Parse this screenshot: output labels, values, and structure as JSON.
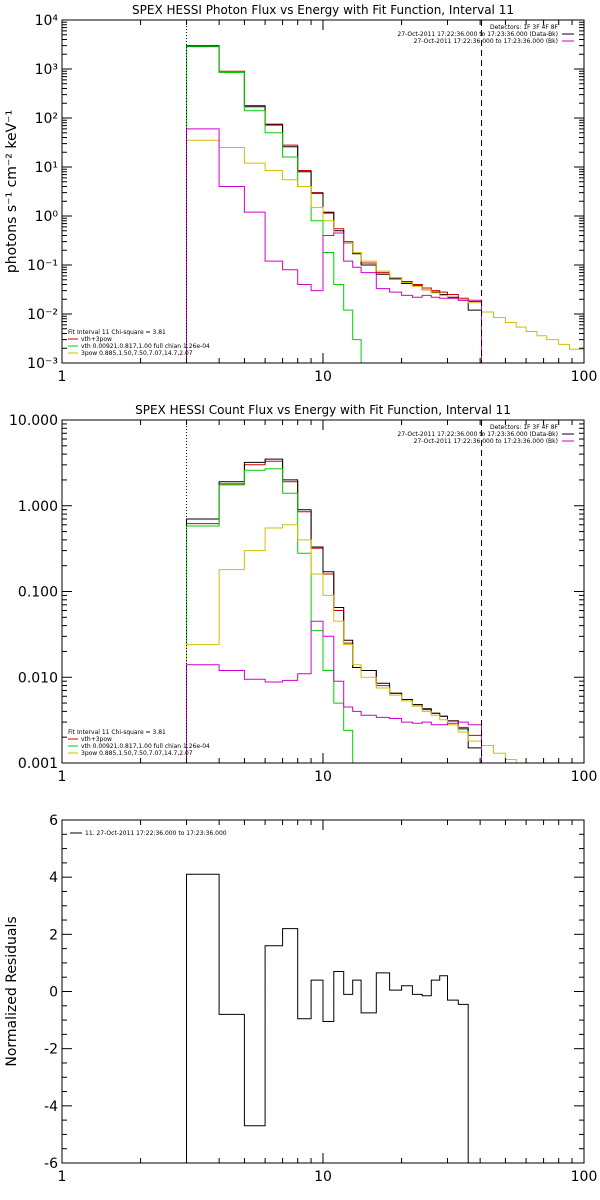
{
  "chart_data": [
    {
      "type": "line",
      "title": "SPEX HESSI Photon Flux vs Energy with Fit Function, Interval 11",
      "ylabel": "photons s⁻¹ cm⁻² keV⁻¹",
      "xlabel": "",
      "xscale": "log",
      "yscale": "log",
      "xlim": [
        1,
        100
      ],
      "ylim": [
        0.001,
        10000
      ],
      "grid": false,
      "xticks": [
        {
          "v": 1,
          "label": "1"
        },
        {
          "v": 10,
          "label": "10"
        },
        {
          "v": 100,
          "label": "100"
        }
      ],
      "yticks": [
        {
          "v": 0.001,
          "label": "10⁻³"
        },
        {
          "v": 0.01,
          "label": "10⁻²"
        },
        {
          "v": 0.1,
          "label": "10⁻¹"
        },
        {
          "v": 1,
          "label": "10⁰"
        },
        {
          "v": 10,
          "label": "10¹"
        },
        {
          "v": 100,
          "label": "10²"
        },
        {
          "v": 1000,
          "label": "10³"
        },
        {
          "v": 10000,
          "label": "10⁴"
        }
      ],
      "vlines": [
        {
          "x": 3.0,
          "style": "dotted",
          "color": "#000000"
        },
        {
          "x": 40.5,
          "style": "dashed",
          "color": "#000000"
        }
      ],
      "legend_topright": [
        {
          "text": "Detectors: 1F 3F 4F 8F",
          "color": ""
        },
        {
          "text": "27-Oct-2011 17:22:36.000 to 17:23:36.000 (Data-Bk)",
          "color": "#000000"
        },
        {
          "text": "27-Oct-2011 17:22:36.000 to 17:23:36.000 (Bk)",
          "color": "#d000d0"
        }
      ],
      "legend_bottomleft": [
        {
          "text": "Fit Interval 11   Chi-square = 3.81",
          "color": ""
        },
        {
          "text": "vth+3pow",
          "color": "#d00000"
        },
        {
          "text": "vth 0.00921,0.817,1.00   full chian 1.26e-04",
          "color": "#00d000"
        },
        {
          "text": "3pow 0.885,1.50,7.50,7.07,14.7,2.07",
          "color": "#d0c000"
        }
      ],
      "edges": [
        3.0,
        4.0,
        5.0,
        6.0,
        7.0,
        8.0,
        9.0,
        10.0,
        11.0,
        12.0,
        13.0,
        14.0,
        16.0,
        18.0,
        20.0,
        22.0,
        24.0,
        26.0,
        28.0,
        30.0,
        33.0,
        36.0,
        40.5
      ],
      "series": [
        {
          "name": "vth+3pow",
          "color": "#d00000",
          "values": [
            3000,
            900,
            180,
            75,
            28,
            8.5,
            3.0,
            1.2,
            0.55,
            0.3,
            0.18,
            0.11,
            0.07,
            0.055,
            0.046,
            0.04,
            0.034,
            0.03,
            0.028,
            0.025,
            0.021,
            0.018
          ]
        },
        {
          "name": "Data-Bk",
          "color": "#000000",
          "values": [
            2900,
            850,
            170,
            72,
            26,
            8.0,
            2.9,
            1.15,
            0.5,
            0.28,
            0.17,
            0.1,
            0.065,
            0.052,
            0.042,
            0.038,
            0.031,
            0.028,
            0.025,
            0.022,
            0.019,
            0.012
          ]
        },
        {
          "name": "vth",
          "color": "#00d000",
          "values": [
            2850,
            850,
            140,
            50,
            16,
            4.0,
            0.8,
            0.18,
            0.04,
            0.012,
            0.003,
            0.0008
          ]
        },
        {
          "name": "3pow",
          "color": "#d0c000",
          "edges": [
            3.0,
            4.0,
            5.0,
            6.0,
            7.0,
            8.0,
            9.0,
            10.0,
            11.0,
            12.0,
            13.0,
            14.0,
            16.0,
            18.0,
            20.0,
            22.0,
            24.0,
            26.0,
            28.0,
            30.0,
            33.0,
            36.0,
            40.5,
            45.0,
            50.0,
            55.0,
            60.0,
            66.0,
            72.0,
            80.0,
            88.0,
            100.0
          ],
          "values": [
            35,
            25,
            12,
            8.5,
            5.5,
            4.0,
            1.5,
            0.8,
            0.45,
            0.28,
            0.18,
            0.12,
            0.075,
            0.055,
            0.044,
            0.037,
            0.031,
            0.027,
            0.024,
            0.021,
            0.019,
            0.017,
            0.011,
            0.0085,
            0.0067,
            0.0054,
            0.0044,
            0.0036,
            0.003,
            0.0024,
            0.0019
          ]
        },
        {
          "name": "Bk",
          "color": "#d000d0",
          "values": [
            60,
            4.0,
            1.2,
            0.12,
            0.08,
            0.04,
            0.03,
            0.4,
            0.45,
            0.12,
            0.09,
            0.07,
            0.033,
            0.028,
            0.024,
            0.022,
            0.024,
            0.022,
            0.021,
            0.021,
            0.019,
            0.019
          ]
        }
      ]
    },
    {
      "type": "line",
      "title": "SPEX HESSI Count Flux vs Energy with Fit Function, Interval 11",
      "ylabel": "",
      "xlabel": "",
      "xscale": "log",
      "yscale": "log",
      "xlim": [
        1,
        100
      ],
      "ylim": [
        0.001,
        10
      ],
      "grid": false,
      "xticks": [
        {
          "v": 1,
          "label": "1"
        },
        {
          "v": 10,
          "label": "10"
        },
        {
          "v": 100,
          "label": "100"
        }
      ],
      "yticks": [
        {
          "v": 0.001,
          "label": "0.001"
        },
        {
          "v": 0.01,
          "label": "0.010"
        },
        {
          "v": 0.1,
          "label": "0.100"
        },
        {
          "v": 1,
          "label": "1.000"
        },
        {
          "v": 10,
          "label": "10.000"
        }
      ],
      "vlines": [
        {
          "x": 3.0,
          "style": "dotted",
          "color": "#000000"
        },
        {
          "x": 40.5,
          "style": "dashed",
          "color": "#000000"
        }
      ],
      "legend_topright": [
        {
          "text": "Detectors: 1F 3F 4F 8F",
          "color": ""
        },
        {
          "text": "27-Oct-2011 17:22:36.000 to 17:23:36.000 (Data-Bk)",
          "color": "#000000"
        },
        {
          "text": "27-Oct-2011 17:22:36.000 to 17:23:36.000 (Bk)",
          "color": "#d000d0"
        }
      ],
      "legend_bottomleft": [
        {
          "text": "Fit Interval 11   Chi-square = 3.81",
          "color": ""
        },
        {
          "text": "vth+3pow",
          "color": "#d00000"
        },
        {
          "text": "vth 0.00921,0.817,1.00   full chian 1.26e-04",
          "color": "#00d000"
        },
        {
          "text": "3pow 0.885,1.50,7.50,7.07,14.7,2.07",
          "color": "#d0c000"
        }
      ],
      "edges": [
        3.0,
        4.0,
        5.0,
        6.0,
        7.0,
        8.0,
        9.0,
        10.0,
        11.0,
        12.0,
        13.0,
        14.0,
        16.0,
        18.0,
        20.0,
        22.0,
        24.0,
        26.0,
        28.0,
        30.0,
        33.0,
        36.0,
        40.5
      ],
      "series": [
        {
          "name": "vth+3pow",
          "color": "#d00000",
          "values": [
            0.62,
            1.8,
            3.0,
            3.3,
            1.9,
            0.85,
            0.32,
            0.16,
            0.06,
            0.025,
            0.013,
            0.012,
            0.008,
            0.0065,
            0.0055,
            0.0048,
            0.0042,
            0.0038,
            0.0035,
            0.0031,
            0.0026,
            0.0021
          ]
        },
        {
          "name": "Data-Bk",
          "color": "#000000",
          "values": [
            0.7,
            1.9,
            3.2,
            3.5,
            2.0,
            0.9,
            0.33,
            0.17,
            0.065,
            0.027,
            0.013,
            0.012,
            0.0085,
            0.0065,
            0.0055,
            0.0048,
            0.0043,
            0.0038,
            0.0035,
            0.0031,
            0.0025,
            0.0015
          ]
        },
        {
          "name": "vth",
          "color": "#00d000",
          "values": [
            0.58,
            1.75,
            2.6,
            2.7,
            1.4,
            0.28,
            0.035,
            0.012,
            0.005,
            0.0024,
            0.001
          ]
        },
        {
          "name": "3pow",
          "color": "#d0c000",
          "edges": [
            3.0,
            4.0,
            5.0,
            6.0,
            7.0,
            8.0,
            9.0,
            10.0,
            11.0,
            12.0,
            13.0,
            14.0,
            16.0,
            18.0,
            20.0,
            22.0,
            24.0,
            26.0,
            28.0,
            30.0,
            33.0,
            36.0,
            40.5,
            45.0,
            50.0,
            55.0
          ],
          "values": [
            0.024,
            0.18,
            0.3,
            0.55,
            0.6,
            0.4,
            0.16,
            0.09,
            0.045,
            0.024,
            0.014,
            0.01,
            0.0075,
            0.0062,
            0.0053,
            0.0046,
            0.004,
            0.0036,
            0.0032,
            0.0028,
            0.0023,
            0.0018,
            0.0016,
            0.0013,
            0.0011
          ]
        },
        {
          "name": "Bk",
          "color": "#d000d0",
          "values": [
            0.014,
            0.012,
            0.0095,
            0.0088,
            0.0092,
            0.011,
            0.045,
            0.03,
            0.009,
            0.0045,
            0.004,
            0.0036,
            0.0034,
            0.0033,
            0.003,
            0.0029,
            0.003,
            0.0028,
            0.0028,
            0.0029,
            0.003,
            0.0028
          ]
        }
      ]
    },
    {
      "type": "line",
      "title": "",
      "ylabel": "Normalized Residuals",
      "xlabel": "",
      "xscale": "log",
      "yscale": "linear",
      "xlim": [
        1,
        100
      ],
      "ylim": [
        -6,
        6
      ],
      "grid": false,
      "xticks": [
        {
          "v": 1,
          "label": "1"
        },
        {
          "v": 10,
          "label": "10"
        },
        {
          "v": 100,
          "label": "100"
        }
      ],
      "yticks": [
        {
          "v": -6,
          "label": "-6"
        },
        {
          "v": -4,
          "label": "-4"
        },
        {
          "v": -2,
          "label": "-2"
        },
        {
          "v": 0,
          "label": "0"
        },
        {
          "v": 2,
          "label": "2"
        },
        {
          "v": 4,
          "label": "4"
        },
        {
          "v": 6,
          "label": "6"
        }
      ],
      "vlines": [],
      "legend_topright": [],
      "legend_bottomleft": [],
      "legend_topleft": [
        {
          "text": "11. 27-Oct-2011 17:22:36.000 to 17:23:36.000",
          "color": "#000000"
        }
      ],
      "edges": [
        3.0,
        4.0,
        5.0,
        6.0,
        7.0,
        8.0,
        9.0,
        10.0,
        11.0,
        12.0,
        13.0,
        14.0,
        16.0,
        18.0,
        20.0,
        22.0,
        24.0,
        26.0,
        28.0,
        30.0,
        33.0,
        36.0,
        40.5
      ],
      "series": [
        {
          "name": "11. 27-Oct-2011 17:22:36.000 to 17:23:36.000",
          "color": "#000000",
          "values": [
            4.1,
            -0.8,
            -4.7,
            1.6,
            2.2,
            -0.95,
            0.4,
            -1.05,
            0.7,
            -0.1,
            0.4,
            -0.75,
            0.65,
            0.05,
            0.2,
            -0.1,
            -0.15,
            0.4,
            0.55,
            -0.3,
            -0.45,
            -6
          ]
        }
      ]
    }
  ]
}
